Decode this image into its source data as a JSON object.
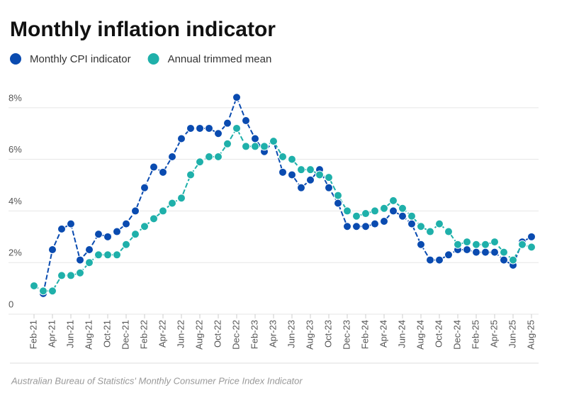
{
  "chart_data": {
    "type": "line",
    "title": "Monthly inflation indicator",
    "source": "Australian Bureau of Statistics' Monthly Consumer Price Index Indicator",
    "categories": [
      "Feb-21",
      null,
      "Apr-21",
      null,
      "Jun-21",
      null,
      "Aug-21",
      null,
      "Oct-21",
      null,
      "Dec-21",
      null,
      "Feb-22",
      null,
      "Apr-22",
      null,
      "Jun-22",
      null,
      "Aug-22",
      null,
      "Oct-22",
      null,
      "Dec-22",
      null,
      "Feb-23",
      null,
      "Apr-23",
      null,
      "Jun-23",
      null,
      "Aug-23",
      null,
      "Oct-23",
      null,
      "Dec-23",
      null,
      "Feb-24",
      null,
      "Apr-24",
      null,
      "Jun-24",
      null,
      "Aug-24",
      null,
      "Oct-24",
      null,
      "Dec-24",
      null,
      "Feb-25",
      null,
      "Apr-25",
      null,
      "Jun-25",
      null,
      "Aug-25"
    ],
    "series": [
      {
        "name": "Monthly CPI indicator",
        "color": "#0a4bb0",
        "values": [
          null,
          0.8,
          2.5,
          3.3,
          3.5,
          2.1,
          2.5,
          3.1,
          3.0,
          3.2,
          3.5,
          4.0,
          4.9,
          5.7,
          5.5,
          6.1,
          6.8,
          7.2,
          7.2,
          7.2,
          7.0,
          7.4,
          8.4,
          7.5,
          6.8,
          6.3,
          6.7,
          5.5,
          5.4,
          4.9,
          5.2,
          5.6,
          4.9,
          4.3,
          3.4,
          3.4,
          3.4,
          3.5,
          3.6,
          4.0,
          3.8,
          3.5,
          2.7,
          2.1,
          2.1,
          2.3,
          2.5,
          2.5,
          2.4,
          2.4,
          2.4,
          2.1,
          1.9,
          2.8,
          3.0
        ]
      },
      {
        "name": "Annual trimmed mean",
        "color": "#1fb0aa",
        "values": [
          1.1,
          0.9,
          0.9,
          1.5,
          1.5,
          1.6,
          2.0,
          2.3,
          2.3,
          2.3,
          2.7,
          3.1,
          3.4,
          3.7,
          4.0,
          4.3,
          4.5,
          5.4,
          5.9,
          6.1,
          6.1,
          6.6,
          7.2,
          6.5,
          6.5,
          6.5,
          6.7,
          6.1,
          6.0,
          5.6,
          5.6,
          5.4,
          5.3,
          4.6,
          4.0,
          3.8,
          3.9,
          4.0,
          4.1,
          4.4,
          4.1,
          3.8,
          3.4,
          3.2,
          3.5,
          3.2,
          2.7,
          2.8,
          2.7,
          2.7,
          2.8,
          2.4,
          2.1,
          2.7,
          2.6
        ]
      }
    ],
    "ylim": [
      0,
      8.6
    ],
    "yticks": [
      0,
      {
        "value": 2,
        "label": "2%"
      },
      {
        "value": 4,
        "label": "4%"
      },
      {
        "value": 6,
        "label": "6%"
      },
      {
        "value": 8,
        "label": "8%"
      }
    ],
    "grid": true
  }
}
